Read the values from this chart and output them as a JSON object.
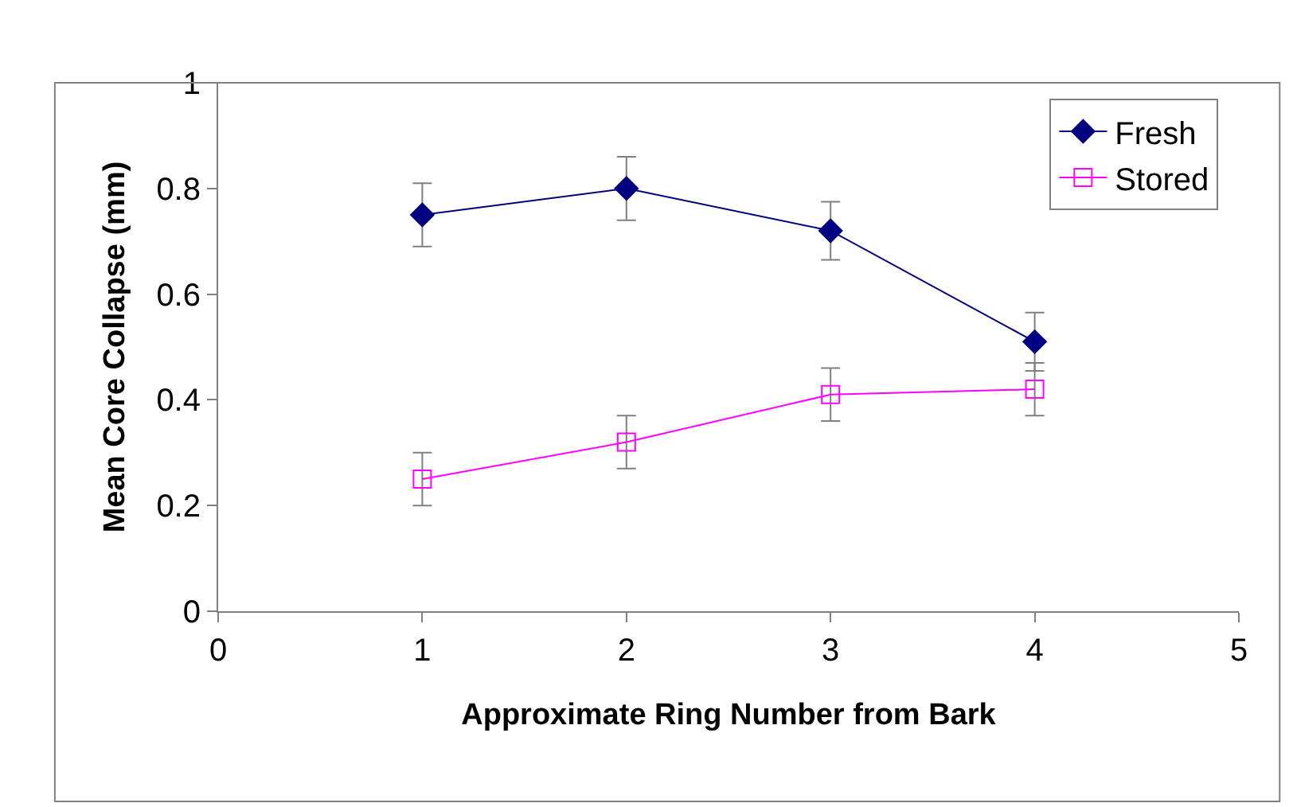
{
  "chart_data": {
    "type": "line",
    "xlabel": "Approximate Ring Number from Bark",
    "ylabel": "Mean Core Collapse (mm)",
    "x": [
      1,
      2,
      3,
      4
    ],
    "series": [
      {
        "name": "Fresh",
        "color": "#000080",
        "values": [
          0.75,
          0.8,
          0.72,
          0.51
        ],
        "errors": [
          0.06,
          0.06,
          0.055,
          0.055
        ],
        "marker": "diamond"
      },
      {
        "name": "Stored",
        "color": "#ff00ff",
        "values": [
          0.25,
          0.32,
          0.41,
          0.42
        ],
        "errors": [
          0.05,
          0.05,
          0.05,
          0.05
        ],
        "marker": "square"
      }
    ],
    "xlim": [
      0,
      5
    ],
    "xticks": [
      0,
      1,
      2,
      3,
      4,
      5
    ],
    "ylim": [
      0,
      1
    ],
    "yticks": [
      0,
      0.2,
      0.4,
      0.6,
      0.8,
      1
    ],
    "legend": "top right",
    "line_style": "solid"
  }
}
